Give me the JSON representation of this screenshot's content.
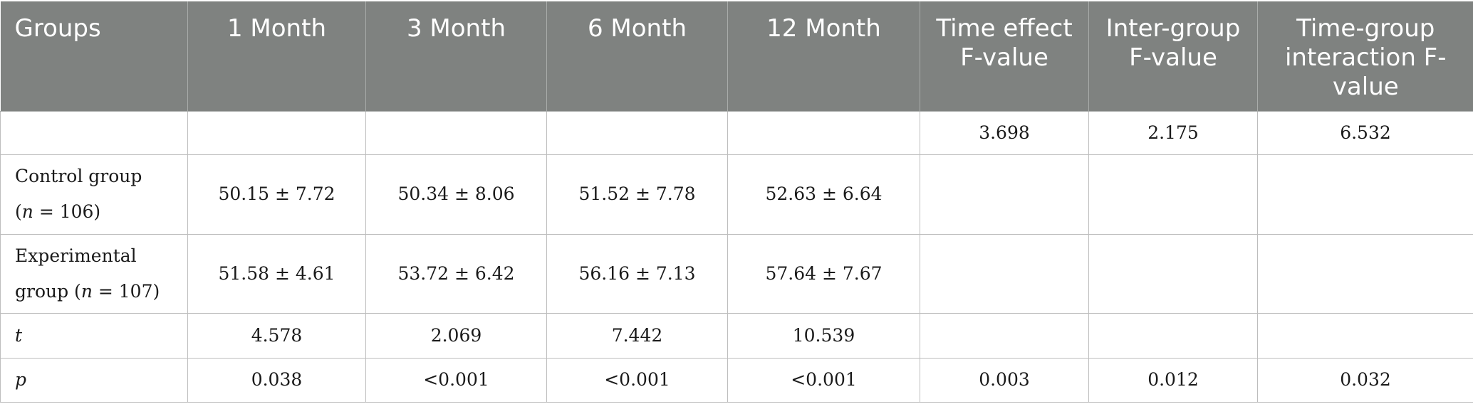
{
  "table": {
    "headers": [
      "Groups",
      "1 Month",
      "3 Month",
      "6 Month",
      "12 Month",
      "Time effect F-value",
      "Inter-group F-value",
      "Time-group interaction F-value"
    ],
    "rows": [
      {
        "label": "",
        "cells": [
          "",
          "",
          "",
          "",
          "3.698",
          "2.175",
          "6.532"
        ]
      },
      {
        "label_line1": "Control group",
        "label_line2_pre": "(",
        "label_line2_var": "n",
        "label_line2_post": " = 106)",
        "cells": [
          "50.15 ± 7.72",
          "50.34 ± 8.06",
          "51.52 ± 7.78",
          "52.63 ± 6.64",
          "",
          "",
          ""
        ]
      },
      {
        "label_line1": "Experimental",
        "label_line2_pre": "group (",
        "label_line2_var": "n",
        "label_line2_post": " = 107)",
        "cells": [
          "51.58 ± 4.61",
          "53.72 ± 6.42",
          "56.16 ± 7.13",
          "57.64 ± 7.67",
          "",
          "",
          ""
        ]
      },
      {
        "label": "t",
        "cells": [
          "4.578",
          "2.069",
          "7.442",
          "10.539",
          "",
          "",
          ""
        ]
      },
      {
        "label": "p",
        "cells": [
          "0.038",
          "<0.001",
          "<0.001",
          "<0.001",
          "0.003",
          "0.012",
          "0.032"
        ]
      }
    ]
  }
}
